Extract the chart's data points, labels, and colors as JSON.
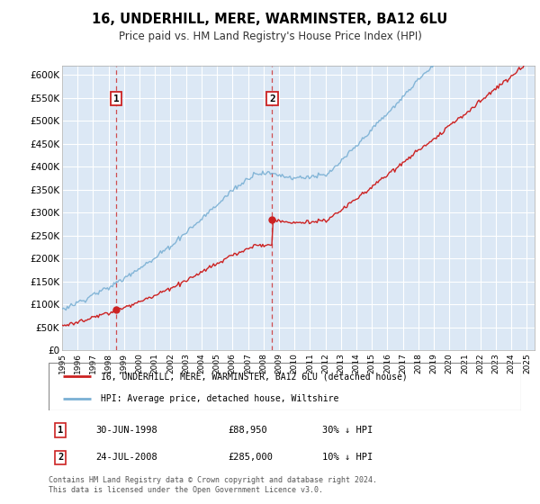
{
  "title": "16, UNDERHILL, MERE, WARMINSTER, BA12 6LU",
  "subtitle": "Price paid vs. HM Land Registry's House Price Index (HPI)",
  "ylim": [
    0,
    620000
  ],
  "xlim_start": 1995.0,
  "xlim_end": 2025.5,
  "background_color": "#dce8f5",
  "grid_color": "#ffffff",
  "sale1_x": 1998.5,
  "sale1_y": 88950,
  "sale1_label": "1",
  "sale1_date": "30-JUN-1998",
  "sale1_price": "£88,950",
  "sale1_hpi": "30% ↓ HPI",
  "sale2_x": 2008.56,
  "sale2_y": 285000,
  "sale2_label": "2",
  "sale2_date": "24-JUL-2008",
  "sale2_price": "£285,000",
  "sale2_hpi": "10% ↓ HPI",
  "legend_line1": "16, UNDERHILL, MERE, WARMINSTER, BA12 6LU (detached house)",
  "legend_line2": "HPI: Average price, detached house, Wiltshire",
  "footer": "Contains HM Land Registry data © Crown copyright and database right 2024.\nThis data is licensed under the Open Government Licence v3.0.",
  "hpi_color": "#7ab0d4",
  "price_color": "#cc2222",
  "dashed_color": "#cc3333",
  "marker_box_color": "#cc2222",
  "ytick_vals": [
    0,
    50000,
    100000,
    150000,
    200000,
    250000,
    300000,
    350000,
    400000,
    450000,
    500000,
    550000,
    600000
  ],
  "ytick_labels": [
    "£0",
    "£50K",
    "£100K",
    "£150K",
    "£200K",
    "£250K",
    "£300K",
    "£350K",
    "£400K",
    "£450K",
    "£500K",
    "£550K",
    "£600K"
  ]
}
